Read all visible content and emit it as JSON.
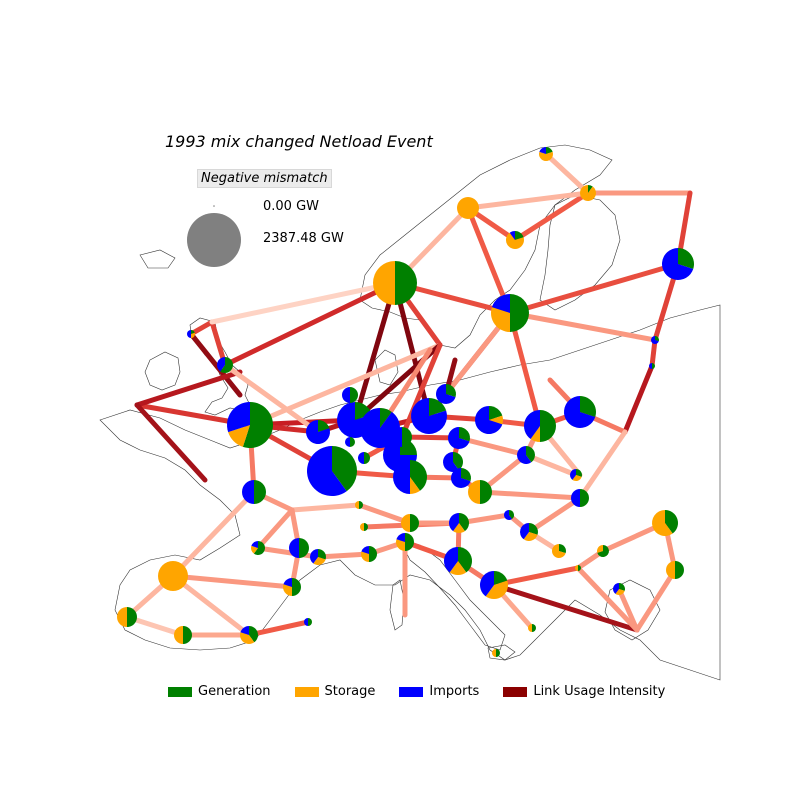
{
  "title": "1993 mix changed Netload Event",
  "size_legend": {
    "heading": "Negative mismatch",
    "small_label": "0.00 GW",
    "large_label": "2387.48 GW"
  },
  "legend": [
    {
      "label": "Generation",
      "color": "#008000"
    },
    {
      "label": "Storage",
      "color": "#ffa500"
    },
    {
      "label": "Imports",
      "color": "#0000ff"
    },
    {
      "label": "Link Usage Intensity",
      "color": "#8b0000"
    }
  ],
  "colors": {
    "generation": "#008000",
    "storage": "#ffa500",
    "imports": "#0000ff",
    "coast": "#333333"
  }
}
